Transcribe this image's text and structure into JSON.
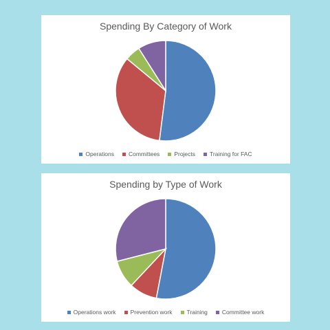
{
  "chart_data": [
    {
      "type": "pie",
      "title": "Spending By Category of Work",
      "categories": [
        "Operations",
        "Committees",
        "Projects",
        "Training for FAC"
      ],
      "values": [
        52,
        34,
        5,
        9
      ],
      "colors": [
        "#4f81bd",
        "#c0504d",
        "#9bbb59",
        "#8064a2"
      ],
      "legend_position": "bottom"
    },
    {
      "type": "pie",
      "title": "Spending by Type of Work",
      "categories": [
        "Operations work",
        "Prevention work",
        "Training",
        "Committee work"
      ],
      "values": [
        53,
        9,
        9,
        29
      ],
      "colors": [
        "#4f81bd",
        "#c0504d",
        "#9bbb59",
        "#8064a2"
      ],
      "legend_position": "bottom"
    }
  ]
}
